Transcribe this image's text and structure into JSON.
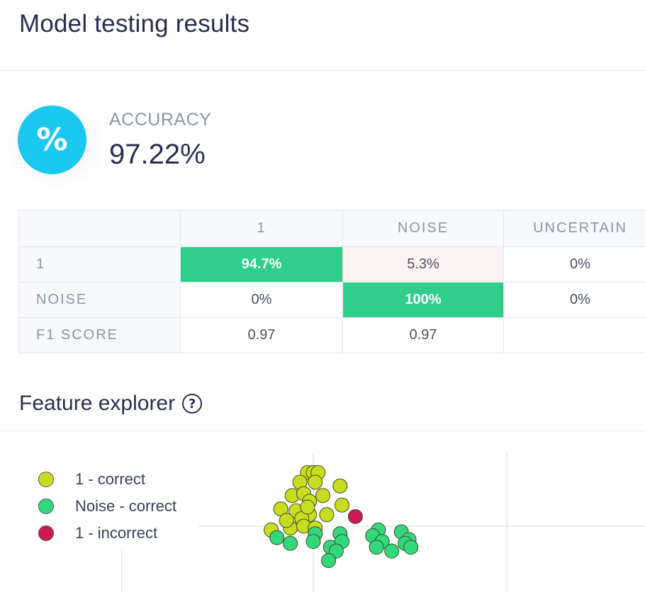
{
  "header": {
    "title": "Model testing results"
  },
  "accuracy": {
    "icon": "percent-icon",
    "icon_glyph": "%",
    "label": "ACCURACY",
    "value": "97.22%"
  },
  "confusion_matrix": {
    "columns": [
      "",
      "1",
      "NOISE",
      "UNCERTAIN"
    ],
    "rows": [
      {
        "label": "1",
        "cells": [
          "94.7%",
          "5.3%",
          "0%"
        ]
      },
      {
        "label": "NOISE",
        "cells": [
          "0%",
          "100%",
          "0%"
        ]
      },
      {
        "label": "F1 SCORE",
        "cells": [
          "0.97",
          "0.97",
          ""
        ]
      }
    ]
  },
  "feature_explorer": {
    "title": "Feature explorer",
    "help_icon": "help-icon",
    "help_glyph": "?",
    "legend": [
      {
        "label": "1 - correct",
        "color": "#c8dd1f"
      },
      {
        "label": "Noise - correct",
        "color": "#34d87c"
      },
      {
        "label": "1 - incorrect",
        "color": "#c81d4e"
      }
    ],
    "points": [
      {
        "x": -0.3,
        "y": 2.8,
        "class": 0
      },
      {
        "x": 0.0,
        "y": 2.8,
        "class": 0
      },
      {
        "x": 0.25,
        "y": 2.8,
        "class": 0
      },
      {
        "x": -0.7,
        "y": 2.3,
        "class": 0
      },
      {
        "x": 0.1,
        "y": 2.3,
        "class": 0
      },
      {
        "x": 1.4,
        "y": 2.1,
        "class": 0
      },
      {
        "x": -1.1,
        "y": 1.6,
        "class": 0
      },
      {
        "x": -0.5,
        "y": 1.7,
        "class": 0
      },
      {
        "x": 0.5,
        "y": 1.6,
        "class": 0
      },
      {
        "x": -0.2,
        "y": 1.3,
        "class": 0
      },
      {
        "x": -1.7,
        "y": 0.9,
        "class": 0
      },
      {
        "x": -0.9,
        "y": 0.8,
        "class": 0
      },
      {
        "x": -0.2,
        "y": 0.6,
        "class": 0
      },
      {
        "x": 0.7,
        "y": 0.6,
        "class": 0
      },
      {
        "x": -0.6,
        "y": 0.4,
        "class": 0
      },
      {
        "x": 1.5,
        "y": 1.1,
        "class": 0
      },
      {
        "x": -2.2,
        "y": -0.2,
        "class": 0
      },
      {
        "x": -1.2,
        "y": -0.1,
        "class": 0
      },
      {
        "x": -0.5,
        "y": 0.0,
        "class": 0
      },
      {
        "x": 0.1,
        "y": -0.1,
        "class": 0
      },
      {
        "x": -0.3,
        "y": 1.0,
        "class": 0
      },
      {
        "x": -1.4,
        "y": 0.3,
        "class": 0
      },
      {
        "x": 2.2,
        "y": 0.5,
        "class": 2
      },
      {
        "x": -1.9,
        "y": -0.6,
        "class": 1
      },
      {
        "x": -1.2,
        "y": -0.9,
        "class": 1
      },
      {
        "x": 0.1,
        "y": -0.4,
        "class": 1
      },
      {
        "x": 1.4,
        "y": -0.4,
        "class": 1
      },
      {
        "x": 0.0,
        "y": -0.8,
        "class": 1
      },
      {
        "x": 0.9,
        "y": -1.1,
        "class": 1
      },
      {
        "x": 1.5,
        "y": -0.8,
        "class": 1
      },
      {
        "x": 1.2,
        "y": -1.3,
        "class": 1
      },
      {
        "x": 0.8,
        "y": -1.8,
        "class": 1
      },
      {
        "x": 3.4,
        "y": -0.2,
        "class": 1
      },
      {
        "x": 3.1,
        "y": -0.5,
        "class": 1
      },
      {
        "x": 3.6,
        "y": -0.8,
        "class": 1
      },
      {
        "x": 4.6,
        "y": -0.3,
        "class": 1
      },
      {
        "x": 5.0,
        "y": -0.7,
        "class": 1
      },
      {
        "x": 4.8,
        "y": -0.9,
        "class": 1
      },
      {
        "x": 5.1,
        "y": -1.1,
        "class": 1
      },
      {
        "x": 3.3,
        "y": -1.1,
        "class": 1
      },
      {
        "x": 4.1,
        "y": -1.3,
        "class": 1
      }
    ]
  }
}
